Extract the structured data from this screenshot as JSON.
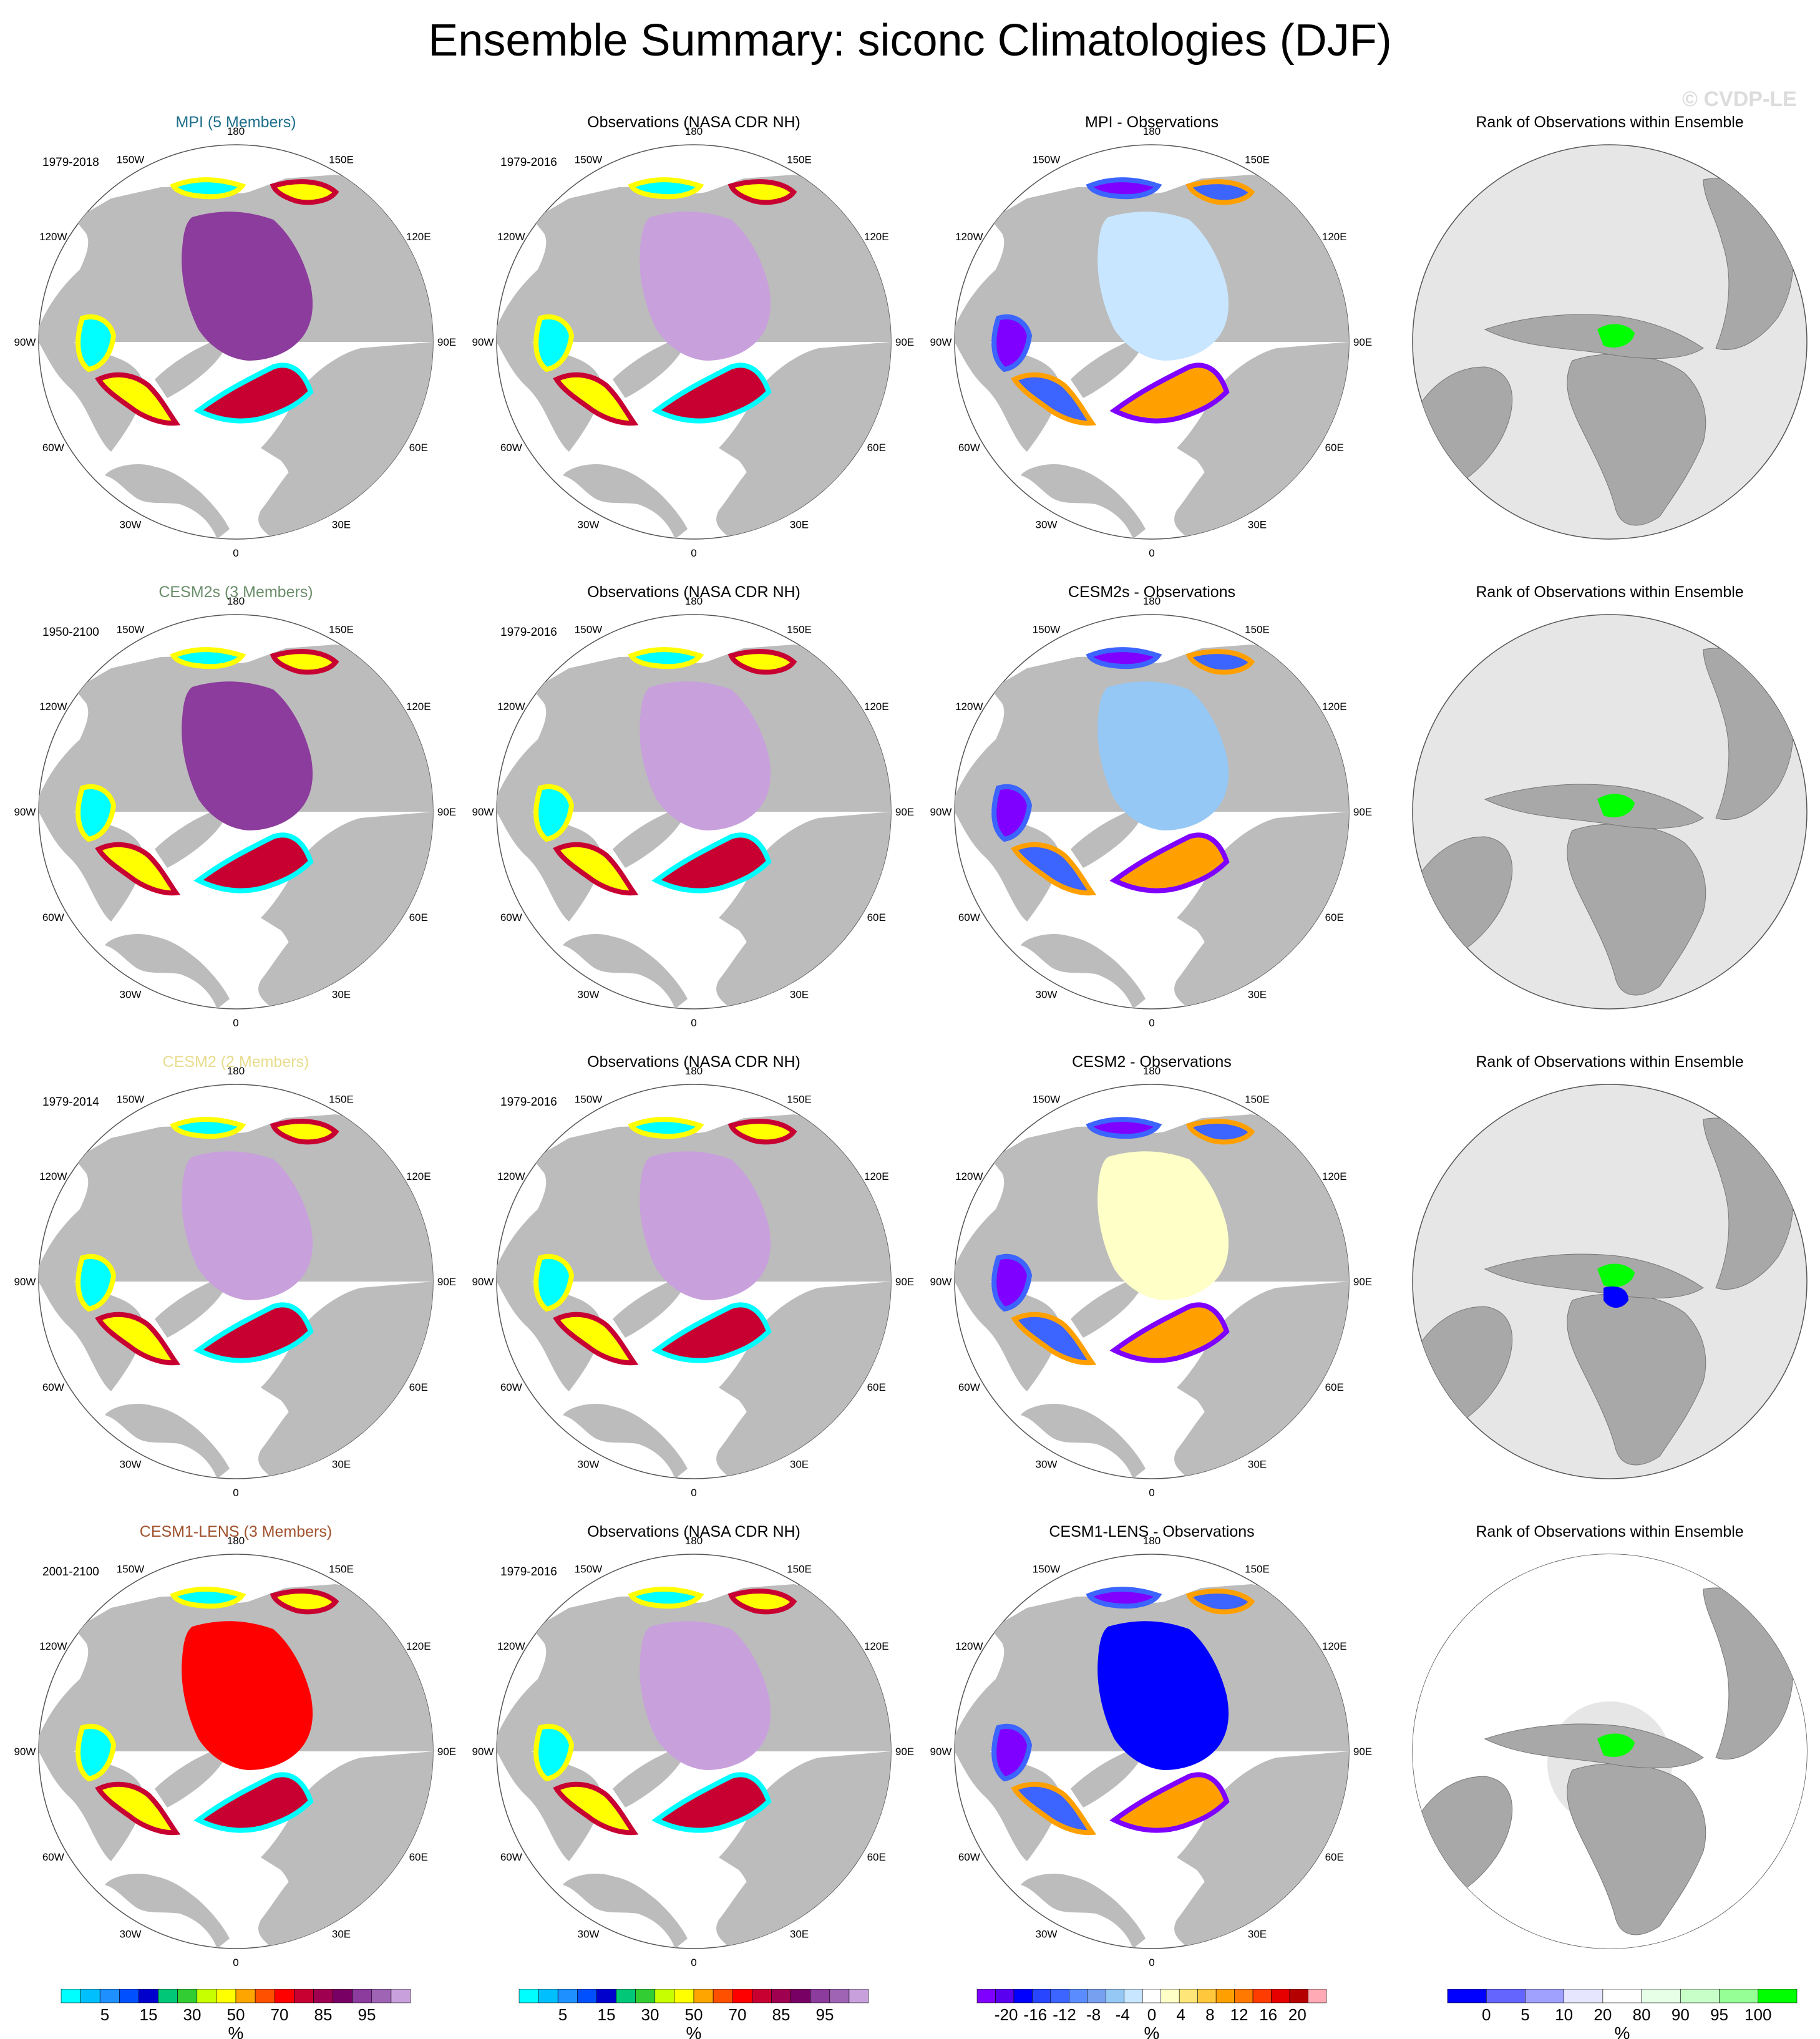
{
  "title": "Ensemble Summary: siconc Climatologies (DJF)",
  "watermark": "© CVDP-LE",
  "colors": {
    "land": "#bcbcbc",
    "ocean": "#ffffff",
    "rank_background": "#e6e6e6",
    "rank_land": "#a8a8a8"
  },
  "longitude_labels": [
    "180",
    "150E",
    "120E",
    "90E",
    "60E",
    "30E",
    "0",
    "30W",
    "60W",
    "90W",
    "120W",
    "150W"
  ],
  "rows": [
    {
      "model": "MPI (5 Members)",
      "model_color": "#1f6f8b",
      "model_period": "1979-2018",
      "obs_title": "Observations (NASA CDR NH)",
      "obs_period": "1979-2016",
      "diff_title": "MPI - Observations",
      "rank_title": "Rank of Observations within Ensemble"
    },
    {
      "model": "CESM2s (3 Members)",
      "model_color": "#6b8e6b",
      "model_period": "1950-2100",
      "obs_title": "Observations (NASA CDR NH)",
      "obs_period": "1979-2016",
      "diff_title": "CESM2s - Observations",
      "rank_title": "Rank of Observations within Ensemble"
    },
    {
      "model": "CESM2 (2 Members)",
      "model_color": "#e8dc8c",
      "model_period": "1979-2014",
      "obs_title": "Observations (NASA CDR NH)",
      "obs_period": "1979-2016",
      "diff_title": "CESM2 - Observations",
      "rank_title": "Rank of Observations within Ensemble"
    },
    {
      "model": "CESM1-LENS (3 Members)",
      "model_color": "#a0522d",
      "model_period": "2001-2100",
      "obs_title": "Observations (NASA CDR NH)",
      "obs_period": "1979-2016",
      "diff_title": "CESM1-LENS - Observations",
      "rank_title": "Rank of Observations within Ensemble"
    }
  ],
  "colorbars": [
    {
      "unit": "%",
      "colors": [
        "#00ffff",
        "#00bfff",
        "#1e90ff",
        "#0050ff",
        "#0000cd",
        "#00c878",
        "#32cd32",
        "#c8ff00",
        "#ffff00",
        "#ffa500",
        "#ff5000",
        "#ff0000",
        "#c80032",
        "#a00050",
        "#780064",
        "#8c3c9c",
        "#a064b4",
        "#c8a0dc"
      ],
      "labels": [
        "5",
        "15",
        "30",
        "50",
        "70",
        "85",
        "95"
      ]
    },
    {
      "unit": "%",
      "colors": [
        "#00ffff",
        "#00bfff",
        "#1e90ff",
        "#0050ff",
        "#0000cd",
        "#00c878",
        "#32cd32",
        "#c8ff00",
        "#ffff00",
        "#ffa500",
        "#ff5000",
        "#ff0000",
        "#c80032",
        "#a00050",
        "#780064",
        "#8c3c9c",
        "#a064b4",
        "#c8a0dc"
      ],
      "labels": [
        "5",
        "15",
        "30",
        "50",
        "70",
        "85",
        "95"
      ]
    },
    {
      "unit": "%",
      "colors": [
        "#7f00ff",
        "#5a00f0",
        "#0000ff",
        "#2846ff",
        "#3c64ff",
        "#5a8cff",
        "#78a0f0",
        "#96c8f5",
        "#c8e6ff",
        "#ffffff",
        "#ffffc8",
        "#ffe678",
        "#ffc83c",
        "#ffa000",
        "#ff7800",
        "#ff3c00",
        "#e60000",
        "#b40000",
        "#ffaab4"
      ],
      "labels": [
        "-20",
        "-16",
        "-12",
        "-8",
        "-4",
        "0",
        "4",
        "8",
        "12",
        "16",
        "20"
      ]
    },
    {
      "unit": "%",
      "colors": [
        "#0000ff",
        "#6464ff",
        "#a0a0ff",
        "#e6e6ff",
        "#ffffff",
        "#e6ffe6",
        "#c8ffc8",
        "#96ff96",
        "#00ff00"
      ],
      "labels": [
        "0",
        "5",
        "10",
        "20",
        "80",
        "90",
        "95",
        "100"
      ]
    }
  ]
}
